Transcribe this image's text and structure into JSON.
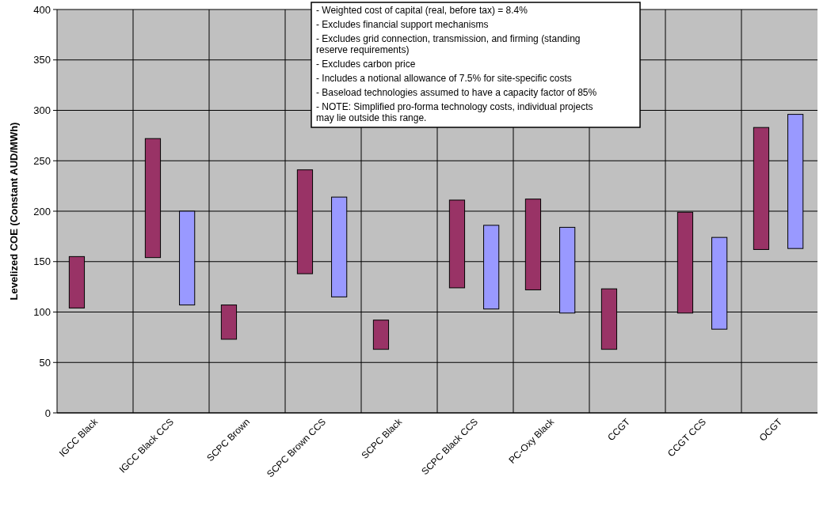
{
  "chart_data": {
    "type": "bar",
    "ylabel": "Levelized COE (Constant AUD/MWh)",
    "categories": [
      "IGCC Black",
      "IGCC Black CCS",
      "SCPC Brown",
      "SCPC Brown CCS",
      "SCPC Black",
      "SCPC Black CCS",
      "PC-Oxy Black",
      "CCGT",
      "CCGT CCS",
      "OCGT"
    ],
    "series": [
      {
        "color": "#993366",
        "base": [
          104,
          154,
          73,
          138,
          63,
          124,
          122,
          63,
          99,
          162
        ],
        "values": [
          51,
          118,
          34,
          103,
          29,
          87,
          90,
          60,
          100,
          121
        ]
      },
      {
        "color": "#9999ff",
        "base": [
          null,
          107,
          null,
          115,
          null,
          103,
          99,
          null,
          83,
          163
        ],
        "values": [
          null,
          93,
          null,
          99,
          null,
          83,
          85,
          null,
          91,
          133
        ]
      }
    ],
    "ylim": [
      0,
      400
    ],
    "yticks": [
      0,
      50,
      100,
      150,
      200,
      250,
      300,
      350,
      400
    ],
    "grid": true,
    "annotations": [
      "- Weighted cost of capital (real, before tax) = 8.4%",
      "- Excludes financial support mechanisms",
      "- Excludes grid connection, transmission, and firming (standing reserve requirements)",
      "- Excludes carbon price",
      "- Includes a notional allowance of 7.5% for site-specific costs",
      "- Baseload technologies assumed to have a capacity factor of 85%",
      "- NOTE: Simplified pro-forma technology costs, individual projects may lie outside this range."
    ]
  }
}
